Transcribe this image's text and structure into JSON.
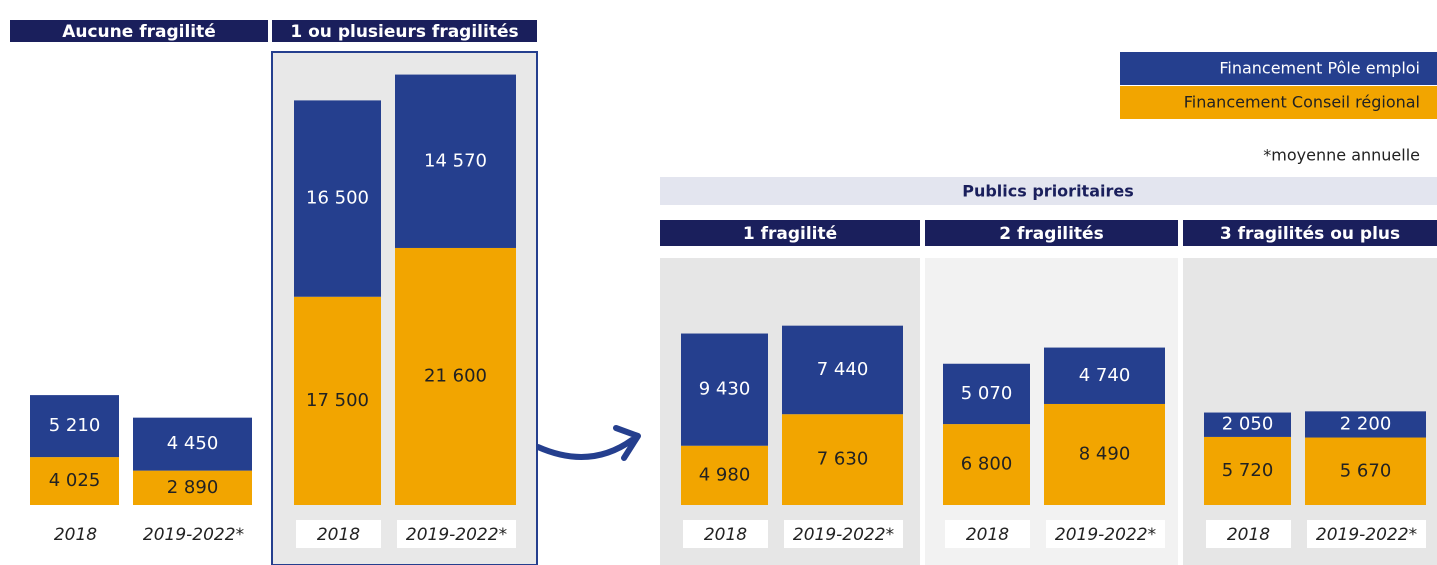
{
  "chart_data": {
    "type": "bar",
    "stacked": true,
    "legend_position": "top-right",
    "legend": [
      {
        "name": "Financement Pôle emploi",
        "color": "#253f8e"
      },
      {
        "name": "Financement Conseil régional",
        "color": "#f2a500"
      }
    ],
    "note": "*moyenne annuelle",
    "group_title": "Publics prioritaires",
    "panels": [
      {
        "title": "Aucune fragilité",
        "categories": [
          "2018",
          "2019-2022*"
        ],
        "series": [
          {
            "values": [
              5210,
              4450
            ],
            "value_labels": [
              "5 210",
              "4 450"
            ]
          },
          {
            "values": [
              4025,
              2890
            ],
            "value_labels": [
              "4 025",
              "2 890"
            ]
          }
        ]
      },
      {
        "title": "1 ou plusieurs fragilités",
        "categories": [
          "2018",
          "2019-2022*"
        ],
        "series": [
          {
            "values": [
              16500,
              14570
            ],
            "value_labels": [
              "16 500",
              "14 570"
            ]
          },
          {
            "values": [
              17500,
              21600
            ],
            "value_labels": [
              "17 500",
              "21 600"
            ]
          }
        ]
      },
      {
        "title": "1 fragilité",
        "categories": [
          "2018",
          "2019-2022*"
        ],
        "series": [
          {
            "values": [
              9430,
              7440
            ],
            "value_labels": [
              "9 430",
              "7 440"
            ]
          },
          {
            "values": [
              4980,
              7630
            ],
            "value_labels": [
              "4 980",
              "7 630"
            ]
          }
        ]
      },
      {
        "title": "2 fragilités",
        "categories": [
          "2018",
          "2019-2022*"
        ],
        "series": [
          {
            "values": [
              5070,
              4740
            ],
            "value_labels": [
              "5 070",
              "4 740"
            ]
          },
          {
            "values": [
              6800,
              8490
            ],
            "value_labels": [
              "6 800",
              "8 490"
            ]
          }
        ]
      },
      {
        "title": "3 fragilités ou plus",
        "categories": [
          "2018",
          "2019-2022*"
        ],
        "series": [
          {
            "values": [
              2050,
              2200
            ],
            "value_labels": [
              "2 050",
              "2 200"
            ]
          },
          {
            "values": [
              5720,
              5670
            ],
            "value_labels": [
              "5 720",
              "5 670"
            ]
          }
        ]
      }
    ]
  }
}
